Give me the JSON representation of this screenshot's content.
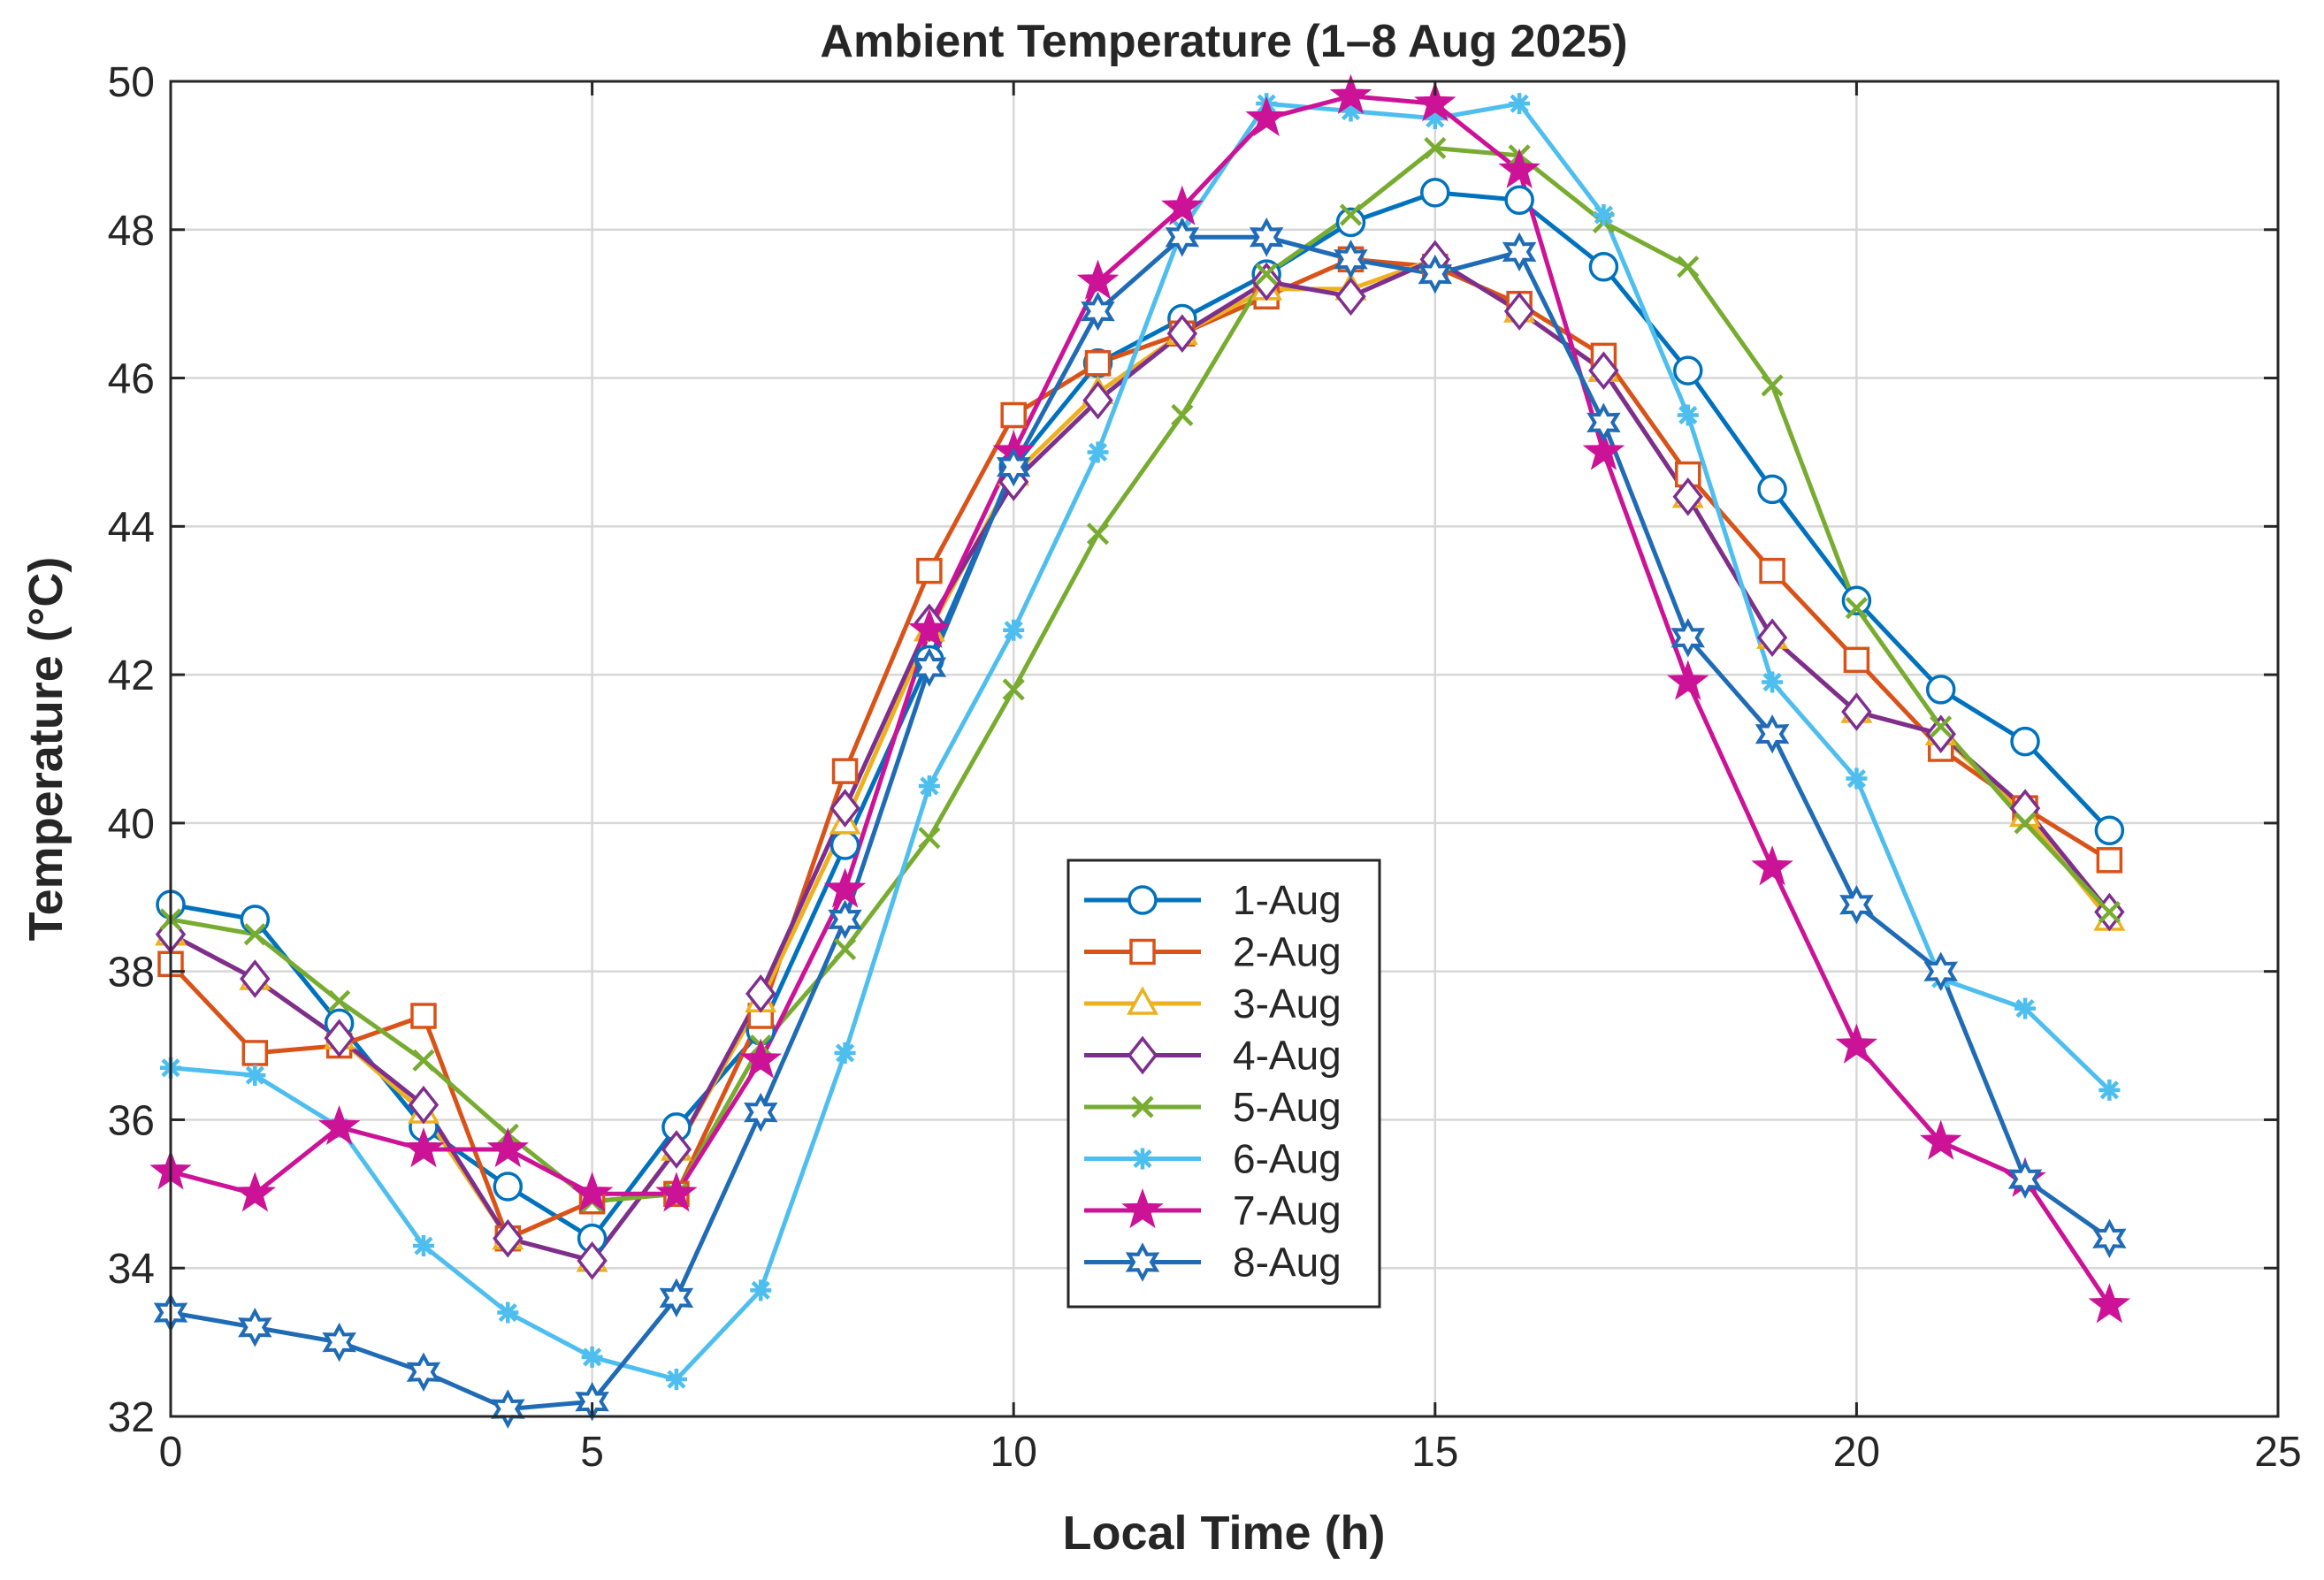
{
  "chart_data": {
    "type": "line",
    "title": "Ambient Temperature (1–8 Aug 2025)",
    "xlabel": "Local Time (h)",
    "ylabel": "Temperature (°C)",
    "xlim": [
      0,
      25
    ],
    "ylim": [
      32,
      50
    ],
    "xticks": [
      0,
      5,
      10,
      15,
      20,
      25
    ],
    "yticks": [
      32,
      34,
      36,
      38,
      40,
      42,
      44,
      46,
      48,
      50
    ],
    "grid": true,
    "legend_position": "center-lower",
    "x": [
      0,
      1,
      2,
      3,
      4,
      5,
      6,
      7,
      8,
      9,
      10,
      11,
      12,
      13,
      14,
      15,
      16,
      17,
      18,
      19,
      20,
      21,
      22,
      23
    ],
    "series": [
      {
        "name": "1-Aug",
        "color": "#0072BD",
        "marker": "circle",
        "values": [
          38.9,
          38.7,
          37.3,
          35.9,
          35.1,
          34.4,
          35.9,
          37.2,
          39.7,
          42.2,
          44.8,
          46.2,
          46.8,
          47.4,
          48.1,
          48.5,
          48.4,
          47.5,
          46.1,
          44.5,
          43.0,
          41.8,
          41.1,
          39.9
        ]
      },
      {
        "name": "2-Aug",
        "color": "#D95319",
        "marker": "square",
        "values": [
          38.1,
          36.9,
          37.0,
          37.4,
          34.4,
          34.9,
          35.0,
          37.4,
          40.7,
          43.4,
          45.5,
          46.2,
          46.6,
          47.1,
          47.6,
          47.5,
          47.0,
          46.3,
          44.7,
          43.4,
          42.2,
          41.0,
          40.2,
          39.5
        ]
      },
      {
        "name": "3-Aug",
        "color": "#EDB120",
        "marker": "triangle",
        "values": [
          38.5,
          37.9,
          37.1,
          36.1,
          34.4,
          34.1,
          35.6,
          37.6,
          40.0,
          42.6,
          44.7,
          45.8,
          46.6,
          47.2,
          47.2,
          47.6,
          46.9,
          46.1,
          44.4,
          42.5,
          41.5,
          41.2,
          40.1,
          38.7
        ]
      },
      {
        "name": "4-Aug",
        "color": "#7E2F8E",
        "marker": "diamond",
        "values": [
          38.5,
          37.9,
          37.1,
          36.2,
          34.4,
          34.1,
          35.6,
          37.7,
          40.2,
          42.7,
          44.6,
          45.7,
          46.6,
          47.3,
          47.1,
          47.6,
          46.9,
          46.1,
          44.4,
          42.5,
          41.5,
          41.2,
          40.2,
          38.8
        ]
      },
      {
        "name": "5-Aug",
        "color": "#77AC30",
        "marker": "x",
        "values": [
          38.7,
          38.5,
          37.6,
          36.8,
          35.8,
          34.9,
          35.0,
          37.0,
          38.3,
          39.8,
          41.8,
          43.9,
          45.5,
          47.4,
          48.2,
          49.1,
          49.0,
          48.1,
          47.5,
          45.9,
          42.9,
          41.3,
          40.0,
          38.8
        ]
      },
      {
        "name": "6-Aug",
        "color": "#4DBEEE",
        "marker": "asterisk",
        "values": [
          36.7,
          36.6,
          35.9,
          34.3,
          33.4,
          32.8,
          32.5,
          33.7,
          36.9,
          40.5,
          42.6,
          45.0,
          48.0,
          49.7,
          49.6,
          49.5,
          49.7,
          48.2,
          45.5,
          41.9,
          40.6,
          37.9,
          37.5,
          36.4
        ]
      },
      {
        "name": "7-Aug",
        "color": "#CC1296",
        "marker": "pentagram",
        "values": [
          35.3,
          35.0,
          35.9,
          35.6,
          35.6,
          35.0,
          35.0,
          36.8,
          39.1,
          42.6,
          45.0,
          47.3,
          48.3,
          49.5,
          49.8,
          49.7,
          48.8,
          45.0,
          41.9,
          39.4,
          37.0,
          35.7,
          35.2,
          33.5
        ]
      },
      {
        "name": "8-Aug",
        "color": "#1F6BB5",
        "marker": "hexagram",
        "values": [
          33.4,
          33.2,
          33.0,
          32.6,
          32.1,
          32.2,
          33.6,
          36.1,
          38.7,
          42.1,
          44.8,
          46.9,
          47.9,
          47.9,
          47.6,
          47.4,
          47.7,
          45.4,
          42.5,
          41.2,
          38.9,
          38.0,
          35.2,
          34.4
        ]
      }
    ]
  }
}
